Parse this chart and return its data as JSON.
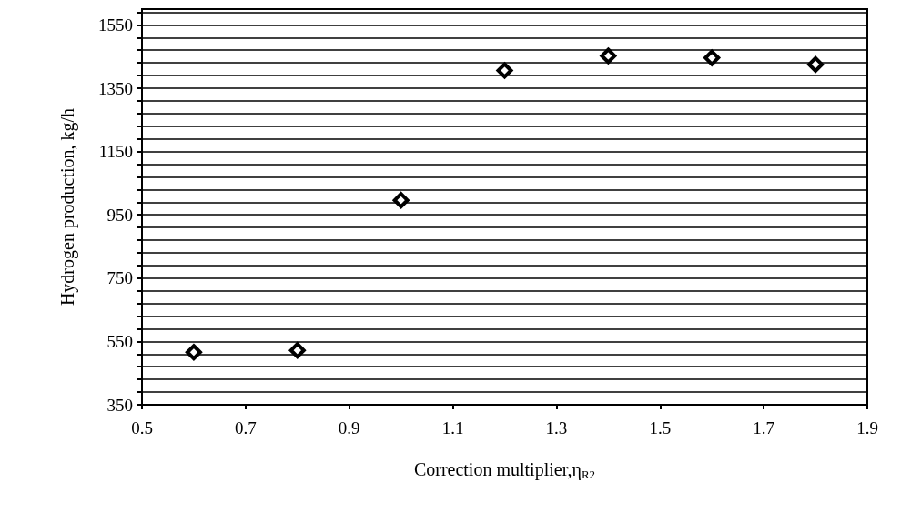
{
  "chart_data": {
    "type": "scatter",
    "xlabel": "Correction multiplier,η$_{R2}$",
    "ylabel": "Hydrogen production, kg/h",
    "x": [
      0.6,
      0.8,
      1.0,
      1.2,
      1.4,
      1.6,
      1.8
    ],
    "series": [
      {
        "color": "#000000",
        "values": [
          516,
          522,
          996,
          1406,
          1452,
          1446,
          1425
        ]
      }
    ],
    "marker": "diamond",
    "grid": "y",
    "xlim": [
      0.5,
      1.9
    ],
    "xticks": [
      0.5,
      0.7,
      0.9,
      1.1,
      1.3,
      1.5,
      1.7,
      1.9
    ],
    "ylim": [
      350,
      1600
    ],
    "yticks": [
      350,
      {
        "value": 390,
        "label": null
      },
      {
        "value": 430,
        "label": null
      },
      {
        "value": 470,
        "label": null
      },
      {
        "value": 510,
        "label": null
      },
      550,
      {
        "value": 590,
        "label": null
      },
      {
        "value": 630,
        "label": null
      },
      {
        "value": 670,
        "label": null
      },
      {
        "value": 710,
        "label": null
      },
      750,
      {
        "value": 790,
        "label": null
      },
      {
        "value": 830,
        "label": null
      },
      {
        "value": 870,
        "label": null
      },
      {
        "value": 910,
        "label": null
      },
      950,
      {
        "value": 990,
        "label": null
      },
      {
        "value": 1030,
        "label": null
      },
      {
        "value": 1070,
        "label": null
      },
      {
        "value": 1110,
        "label": null
      },
      1150,
      {
        "value": 1190,
        "label": null
      },
      {
        "value": 1230,
        "label": null
      },
      {
        "value": 1270,
        "label": null
      },
      {
        "value": 1310,
        "label": null
      },
      1350,
      {
        "value": 1390,
        "label": null
      },
      {
        "value": 1430,
        "label": null
      },
      {
        "value": 1470,
        "label": null
      },
      {
        "value": 1510,
        "label": null
      },
      1550,
      {
        "value": 1590,
        "label": null
      }
    ]
  }
}
